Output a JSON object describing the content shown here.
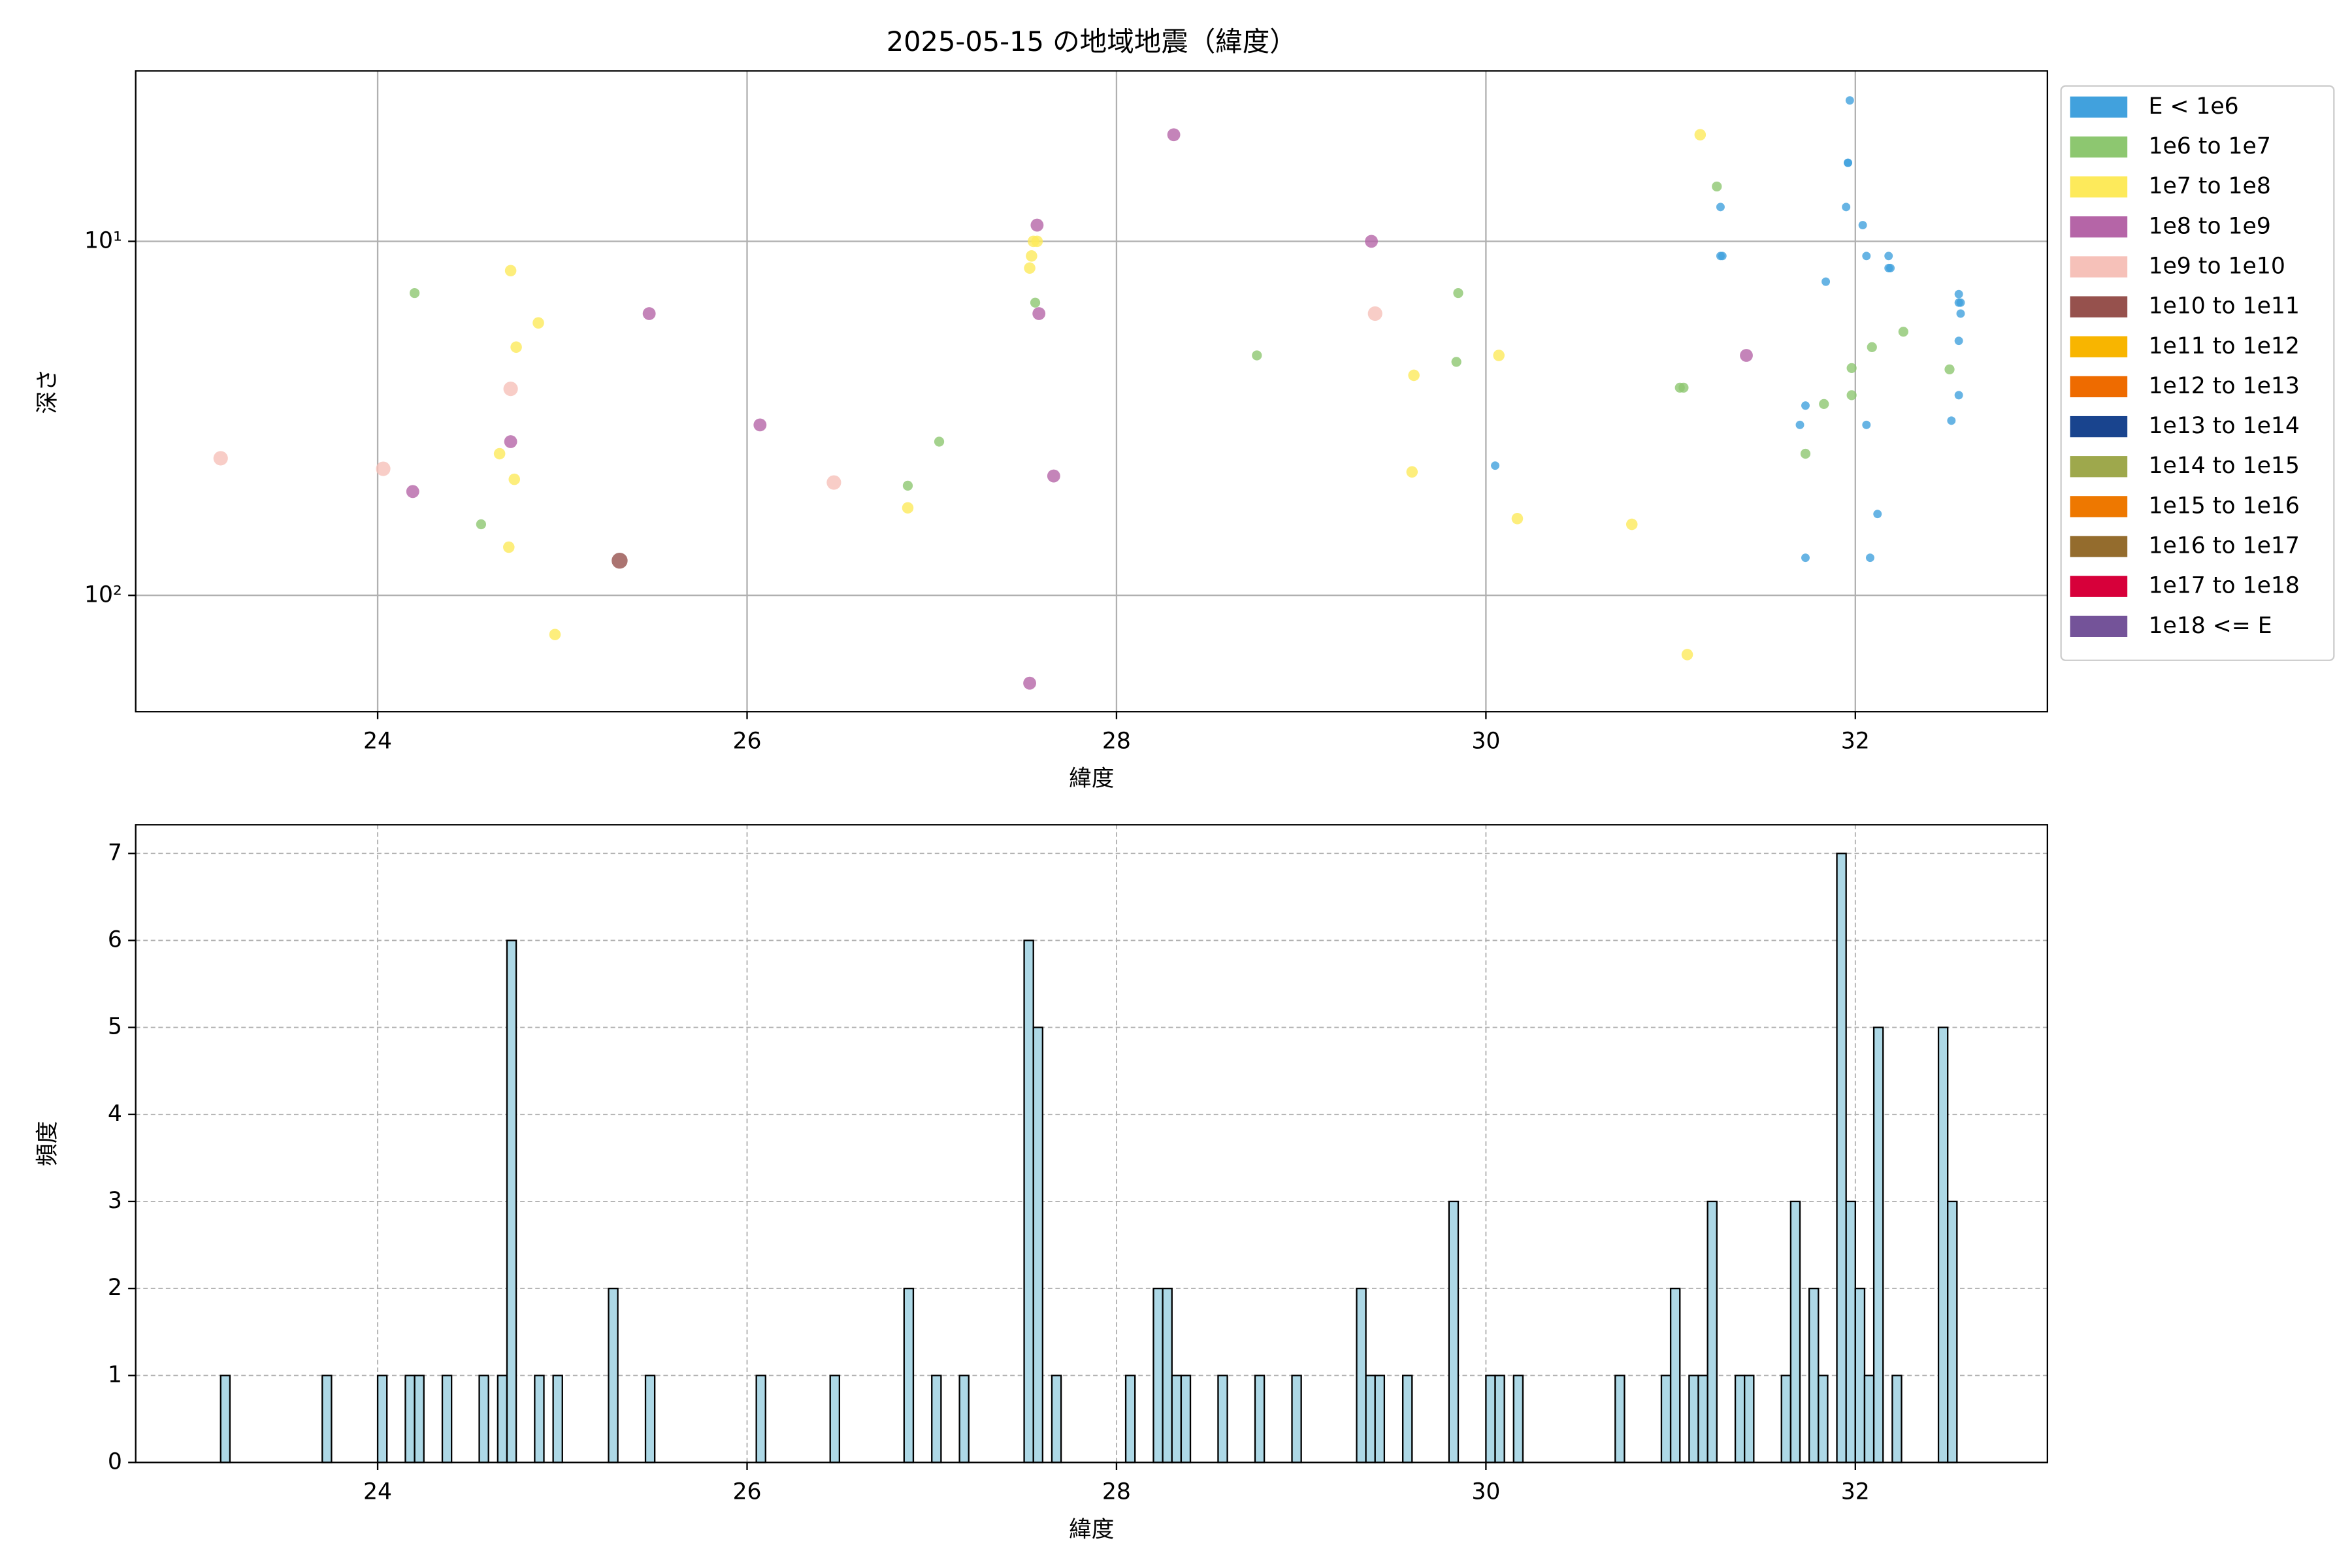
{
  "chart_data": [
    {
      "type": "scatter",
      "title": "2025-05-15 の地域地震（緯度）",
      "x_label": "緯度",
      "y_label": "深さ",
      "xlim": [
        22.69,
        33.04
      ],
      "xticks": [
        24,
        26,
        28,
        30,
        32
      ],
      "ylim": [
        3.3,
        213
      ],
      "yticks": [
        {
          "value": 10,
          "label": "10¹"
        },
        {
          "value": 100,
          "label": "10²"
        }
      ],
      "log_y": true,
      "y_inverted": true,
      "grid": true,
      "legend": "outside right",
      "series": [
        {
          "name": "E < 1e6",
          "color": "#41a1dd",
          "x": [
            31.97,
            31.96,
            31.96,
            31.95,
            31.27,
            32.04,
            31.27,
            31.28,
            32.06,
            32.18,
            32.18,
            32.19,
            31.84,
            32.56,
            32.56,
            32.57,
            32.57,
            32.56,
            31.73,
            31.7,
            32.06,
            32.52,
            32.56,
            30.05,
            32.12,
            31.73,
            32.08
          ],
          "y": [
            4.0,
            6.0,
            6.0,
            8.0,
            8.0,
            9.0,
            11.0,
            11.0,
            11.0,
            11.0,
            11.9,
            11.9,
            13.0,
            14.1,
            14.9,
            14.9,
            16.0,
            19.1,
            29.1,
            33.0,
            33.0,
            32.1,
            27.2,
            43.0,
            58.9,
            78.3,
            78.3
          ]
        },
        {
          "name": "1e6 to 1e7",
          "color": "#8dc770",
          "x": [
            24.2,
            24.56,
            26.87,
            27.04,
            27.56,
            28.76,
            29.84,
            29.85,
            31.05,
            31.07,
            31.25,
            31.73,
            31.83,
            31.98,
            31.98,
            32.09,
            32.26,
            32.51
          ],
          "y": [
            14.0,
            63.0,
            49.0,
            36.8,
            14.9,
            21.0,
            21.9,
            14.0,
            25.9,
            25.9,
            7.0,
            39.8,
            28.8,
            27.2,
            22.8,
            19.9,
            18.0,
            23.0
          ]
        },
        {
          "name": "1e7 to 1e8",
          "color": "#fdea5b",
          "x": [
            24.72,
            24.87,
            24.75,
            24.66,
            24.74,
            24.71,
            24.96,
            27.53,
            27.54,
            27.55,
            27.57,
            26.87,
            29.6,
            29.61,
            30.07,
            30.17,
            30.79,
            31.09,
            31.16
          ],
          "y": [
            12.1,
            17.0,
            19.9,
            39.8,
            47.0,
            73.1,
            129,
            11.9,
            11.0,
            10.0,
            10.0,
            56.6,
            44.8,
            23.9,
            21.0,
            60.7,
            63.0,
            147,
            5.0
          ]
        },
        {
          "name": "1e8 to 1e9",
          "color": "#b565a7",
          "x": [
            28.31,
            27.57,
            27.58,
            25.47,
            29.38,
            31.41,
            26.07,
            24.72,
            24.19,
            27.66,
            27.53
          ],
          "y": [
            5.0,
            9.0,
            16.0,
            16.0,
            10.0,
            21.0,
            33.0,
            36.8,
            50.9,
            46.0,
            177
          ]
        },
        {
          "name": "1e9 to 1e10",
          "color": "#f6c1b9",
          "x": [
            23.15,
            24.03,
            24.72,
            26.47,
            29.4
          ],
          "y": [
            41.0,
            43.9,
            26.1,
            48.0,
            16.0
          ]
        },
        {
          "name": "1e10 to 1e11",
          "color": "#96514d",
          "x": [
            25.31
          ],
          "y": [
            79.8
          ]
        },
        {
          "name": "1e11 to 1e12",
          "color": "#f8b500",
          "x": [],
          "y": []
        },
        {
          "name": "1e12 to 1e13",
          "color": "#ee6b00",
          "x": [],
          "y": []
        },
        {
          "name": "1e13 to 1e14",
          "color": "#19448e",
          "x": [],
          "y": []
        },
        {
          "name": "1e14 to 1e15",
          "color": "#9ea84c",
          "x": [],
          "y": []
        },
        {
          "name": "1e15 to 1e16",
          "color": "#ee7800",
          "x": [],
          "y": []
        },
        {
          "name": "1e16 to 1e17",
          "color": "#946c2d",
          "x": [],
          "y": []
        },
        {
          "name": "1e17 to 1e18",
          "color": "#d7003a",
          "x": [],
          "y": []
        },
        {
          "name": "1e18 <= E",
          "color": "#745399",
          "x": [],
          "y": []
        }
      ]
    },
    {
      "type": "histogram",
      "x_label": "緯度",
      "y_label": "頻度",
      "color": "#add8e6",
      "xlim": [
        22.69,
        33.04
      ],
      "xticks": [
        24,
        26,
        28,
        30,
        32
      ],
      "ylim": [
        0,
        7.33
      ],
      "yticks": [
        0,
        1,
        2,
        3,
        4,
        5,
        6,
        7
      ],
      "grid": true,
      "bins": [
        23.15,
        23.2,
        23.25,
        23.3,
        23.35,
        23.4,
        23.45,
        23.5,
        23.55,
        23.6,
        23.65,
        23.7,
        23.75,
        23.8,
        23.85,
        23.9,
        23.95,
        24,
        24.05,
        24.1,
        24.15,
        24.2,
        24.25,
        24.3,
        24.35,
        24.4,
        24.45,
        24.5,
        24.55,
        24.6,
        24.65,
        24.7,
        24.75,
        24.8,
        24.85,
        24.9,
        24.95,
        25,
        25.05,
        25.1,
        25.15,
        25.2,
        25.25,
        25.3,
        25.35,
        25.4,
        25.45,
        25.5,
        25.55,
        25.6,
        25.65,
        25.7,
        25.75,
        25.8,
        25.85,
        25.9,
        25.95,
        26,
        26.05,
        26.1,
        26.15,
        26.2,
        26.25,
        26.3,
        26.35,
        26.4,
        26.45,
        26.5,
        26.55,
        26.6,
        26.65,
        26.7,
        26.75,
        26.8,
        26.85,
        26.9,
        26.95,
        27,
        27.05,
        27.1,
        27.15,
        27.2,
        27.25,
        27.3,
        27.35,
        27.4,
        27.45,
        27.5,
        27.55,
        27.6,
        27.65,
        27.7,
        27.75,
        27.8,
        27.85,
        27.9,
        27.95,
        28,
        28.05,
        28.1,
        28.15,
        28.2,
        28.25,
        28.3,
        28.35,
        28.4,
        28.45,
        28.5,
        28.55,
        28.6,
        28.65,
        28.7,
        28.75,
        28.8,
        28.85,
        28.9,
        28.95,
        29,
        29.05,
        29.1,
        29.15,
        29.2,
        29.25,
        29.3,
        29.35,
        29.4,
        29.45,
        29.5,
        29.55,
        29.6,
        29.65,
        29.7,
        29.75,
        29.8,
        29.85,
        29.9,
        29.95,
        30,
        30.05,
        30.1,
        30.15,
        30.2,
        30.25,
        30.3,
        30.35,
        30.4,
        30.45,
        30.5,
        30.55,
        30.6,
        30.65,
        30.7,
        30.75,
        30.8,
        30.85,
        30.9,
        30.95,
        31,
        31.05,
        31.1,
        31.15,
        31.2,
        31.25,
        31.3,
        31.35,
        31.4,
        31.45,
        31.5,
        31.55,
        31.6,
        31.65,
        31.7,
        31.75,
        31.8,
        31.85,
        31.9,
        31.95,
        32,
        32.05,
        32.1,
        32.15,
        32.2,
        32.25,
        32.3,
        32.35,
        32.4,
        32.45,
        32.5,
        32.55
      ],
      "counts": [
        1,
        0,
        0,
        0,
        0,
        0,
        0,
        0,
        0,
        0,
        0,
        1,
        0,
        0,
        0,
        0,
        0,
        1,
        0,
        0,
        1,
        1,
        0,
        0,
        1,
        0,
        0,
        0,
        1,
        0,
        1,
        6,
        0,
        0,
        1,
        0,
        1,
        0,
        0,
        0,
        0,
        0,
        2,
        0,
        0,
        0,
        1,
        0,
        0,
        0,
        0,
        0,
        0,
        0,
        0,
        0,
        0,
        0,
        1,
        0,
        0,
        0,
        0,
        0,
        0,
        0,
        1,
        0,
        0,
        0,
        0,
        0,
        0,
        0,
        2,
        0,
        0,
        1,
        0,
        0,
        1,
        0,
        0,
        0,
        0,
        0,
        0,
        6,
        5,
        0,
        1,
        0,
        0,
        0,
        0,
        0,
        0,
        0,
        1,
        0,
        0,
        2,
        2,
        1,
        1,
        0,
        0,
        0,
        1,
        0,
        0,
        0,
        1,
        0,
        0,
        0,
        1,
        0,
        0,
        0,
        0,
        0,
        0,
        2,
        1,
        1,
        0,
        0,
        1,
        0,
        0,
        0,
        0,
        3,
        0,
        0,
        0,
        1,
        1,
        0,
        1,
        0,
        0,
        0,
        0,
        0,
        0,
        0,
        0,
        0,
        0,
        1,
        0,
        0,
        0,
        0,
        1,
        2,
        0,
        1,
        1,
        3,
        0,
        0,
        1,
        1,
        0,
        0,
        0,
        1,
        3,
        0,
        2,
        1,
        0,
        7,
        3,
        2,
        1,
        5,
        0,
        1,
        0,
        0,
        0,
        0,
        5,
        3
      ]
    }
  ]
}
